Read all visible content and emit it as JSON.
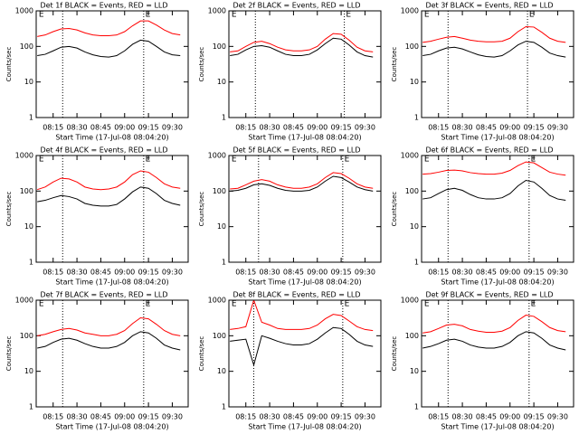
{
  "chart_data": [
    {
      "type": "line",
      "title": "Det 1f BLACK = Events, RED = LLD",
      "xlabel": "Start Time (17-Jul-08 08:04:20)",
      "ylabel": "Counts/sec",
      "ylog": true,
      "x": [
        485,
        490,
        495,
        500,
        505,
        510,
        515,
        520,
        525,
        530,
        535,
        540,
        545,
        550,
        555,
        560,
        565,
        570,
        575
      ],
      "series": [
        {
          "color": "#000000",
          "values": [
            55,
            60,
            75,
            95,
            100,
            90,
            70,
            58,
            52,
            50,
            55,
            75,
            115,
            150,
            140,
            100,
            70,
            58,
            55
          ]
        },
        {
          "color": "#ff0000",
          "values": [
            190,
            210,
            260,
            310,
            320,
            290,
            240,
            210,
            200,
            200,
            210,
            260,
            380,
            520,
            520,
            400,
            290,
            230,
            210
          ]
        }
      ],
      "xlim": [
        484.33,
        580
      ],
      "xticks": [
        {
          "value": 495,
          "label": "08:15"
        },
        {
          "value": 510,
          "label": "08:30"
        },
        {
          "value": 525,
          "label": "08:45"
        },
        {
          "value": 540,
          "label": "09:00"
        },
        {
          "value": 555,
          "label": "09:15"
        },
        {
          "value": 570,
          "label": "09:30"
        }
      ],
      "ylim": [
        1,
        1000
      ],
      "yticks": [
        1,
        10,
        100,
        1000
      ],
      "vlines": [
        501,
        552
      ],
      "markers": [
        {
          "x": 486,
          "label": "E"
        },
        {
          "x": 553,
          "label": "E"
        }
      ]
    },
    {
      "type": "line",
      "title": "Det 2f BLACK = Events, RED = LLD",
      "xlabel": "Start Time (17-Jul-08 08:04:20)",
      "ylabel": "Counts/sec",
      "ylog": true,
      "x": [
        485,
        490,
        495,
        500,
        505,
        510,
        515,
        520,
        525,
        530,
        535,
        540,
        545,
        550,
        555,
        560,
        565,
        570,
        575
      ],
      "series": [
        {
          "color": "#000000",
          "values": [
            55,
            60,
            80,
            100,
            105,
            95,
            75,
            60,
            55,
            55,
            60,
            80,
            120,
            170,
            160,
            110,
            70,
            55,
            50
          ]
        },
        {
          "color": "#ff0000",
          "values": [
            70,
            75,
            100,
            130,
            140,
            120,
            95,
            80,
            75,
            75,
            80,
            100,
            160,
            230,
            220,
            150,
            95,
            75,
            70
          ]
        }
      ],
      "xlim": [
        484.33,
        580
      ],
      "xticks": [
        {
          "value": 495,
          "label": "08:15"
        },
        {
          "value": 510,
          "label": "08:30"
        },
        {
          "value": 525,
          "label": "08:45"
        },
        {
          "value": 540,
          "label": "09:00"
        },
        {
          "value": 555,
          "label": "09:15"
        },
        {
          "value": 570,
          "label": "09:30"
        }
      ],
      "ylim": [
        1,
        1000
      ],
      "yticks": [
        1,
        10,
        100,
        1000
      ],
      "vlines": [
        501,
        557
      ],
      "markers": [
        {
          "x": 486,
          "label": "E"
        },
        {
          "x": 558,
          "label": "E"
        }
      ]
    },
    {
      "type": "line",
      "title": "Det 3f BLACK = Events, RED = LLD",
      "xlabel": "Start Time (17-Jul-08 08:04:20)",
      "ylabel": "Counts/sec",
      "ylog": true,
      "x": [
        485,
        490,
        495,
        500,
        505,
        510,
        515,
        520,
        525,
        530,
        535,
        540,
        545,
        550,
        555,
        560,
        565,
        570,
        575
      ],
      "series": [
        {
          "color": "#000000",
          "values": [
            55,
            60,
            75,
            90,
            95,
            85,
            70,
            58,
            52,
            50,
            55,
            75,
            110,
            140,
            130,
            95,
            65,
            55,
            50
          ]
        },
        {
          "color": "#ff0000",
          "values": [
            130,
            140,
            160,
            180,
            190,
            170,
            150,
            140,
            135,
            135,
            140,
            170,
            260,
            360,
            350,
            250,
            170,
            140,
            130
          ]
        }
      ],
      "xlim": [
        484.33,
        580
      ],
      "xticks": [
        {
          "value": 495,
          "label": "08:15"
        },
        {
          "value": 510,
          "label": "08:30"
        },
        {
          "value": 525,
          "label": "08:45"
        },
        {
          "value": 540,
          "label": "09:00"
        },
        {
          "value": 555,
          "label": "09:15"
        },
        {
          "value": 570,
          "label": "09:30"
        }
      ],
      "ylim": [
        1,
        1000
      ],
      "yticks": [
        1,
        10,
        100,
        1000
      ],
      "vlines": [
        501,
        551
      ],
      "markers": [
        {
          "x": 486,
          "label": "E"
        },
        {
          "x": 552,
          "label": "E"
        }
      ]
    },
    {
      "type": "line",
      "title": "Det 4f BLACK = Events, RED = LLD",
      "xlabel": "Start Time (17-Jul-08 08:04:20)",
      "ylabel": "Counts/sec",
      "ylog": true,
      "x": [
        485,
        490,
        495,
        500,
        505,
        510,
        515,
        520,
        525,
        530,
        535,
        540,
        545,
        550,
        555,
        560,
        565,
        570,
        575
      ],
      "series": [
        {
          "color": "#000000",
          "values": [
            50,
            55,
            65,
            75,
            70,
            60,
            45,
            40,
            38,
            38,
            42,
            60,
            95,
            130,
            120,
            85,
            55,
            45,
            40
          ]
        },
        {
          "color": "#ff0000",
          "values": [
            110,
            130,
            180,
            230,
            220,
            180,
            130,
            115,
            110,
            115,
            130,
            180,
            290,
            370,
            340,
            240,
            160,
            130,
            120
          ]
        }
      ],
      "xlim": [
        484.33,
        580
      ],
      "xticks": [
        {
          "value": 495,
          "label": "08:15"
        },
        {
          "value": 510,
          "label": "08:30"
        },
        {
          "value": 525,
          "label": "08:45"
        },
        {
          "value": 540,
          "label": "09:00"
        },
        {
          "value": 555,
          "label": "09:15"
        },
        {
          "value": 570,
          "label": "09:30"
        }
      ],
      "ylim": [
        1,
        1000
      ],
      "yticks": [
        1,
        10,
        100,
        1000
      ],
      "vlines": [
        501,
        552
      ],
      "markers": [
        {
          "x": 486,
          "label": "E"
        },
        {
          "x": 553,
          "label": "E"
        }
      ]
    },
    {
      "type": "line",
      "title": "Det 5f BLACK = Events, RED = LLD",
      "xlabel": "Start Time (17-Jul-08 08:04:20)",
      "ylabel": "Counts/sec",
      "ylog": true,
      "x": [
        485,
        490,
        495,
        500,
        505,
        510,
        515,
        520,
        525,
        530,
        535,
        540,
        545,
        550,
        555,
        560,
        565,
        570,
        575
      ],
      "series": [
        {
          "color": "#000000",
          "values": [
            100,
            105,
            120,
            150,
            160,
            145,
            120,
            105,
            100,
            100,
            105,
            130,
            190,
            260,
            240,
            180,
            130,
            110,
            100
          ]
        },
        {
          "color": "#ff0000",
          "values": [
            115,
            120,
            150,
            190,
            210,
            190,
            150,
            130,
            120,
            120,
            130,
            160,
            240,
            330,
            310,
            230,
            160,
            130,
            120
          ]
        }
      ],
      "xlim": [
        484.33,
        580
      ],
      "xticks": [
        {
          "value": 495,
          "label": "08:15"
        },
        {
          "value": 510,
          "label": "08:30"
        },
        {
          "value": 525,
          "label": "08:45"
        },
        {
          "value": 540,
          "label": "09:00"
        },
        {
          "value": 555,
          "label": "09:15"
        },
        {
          "value": 570,
          "label": "09:30"
        }
      ],
      "ylim": [
        1,
        1000
      ],
      "yticks": [
        1,
        10,
        100,
        1000
      ],
      "vlines": [
        503,
        556
      ],
      "markers": [
        {
          "x": 486,
          "label": "E"
        },
        {
          "x": 557,
          "label": "E"
        }
      ]
    },
    {
      "type": "line",
      "title": "Det 6f BLACK = Events, RED = LLD",
      "xlabel": "Start Time (17-Jul-08 08:04:20)",
      "ylabel": "Counts/sec",
      "ylog": true,
      "x": [
        485,
        490,
        495,
        500,
        505,
        510,
        515,
        520,
        525,
        530,
        535,
        540,
        545,
        550,
        555,
        560,
        565,
        570,
        575
      ],
      "series": [
        {
          "color": "#000000",
          "values": [
            60,
            65,
            85,
            110,
            120,
            105,
            80,
            65,
            60,
            60,
            65,
            85,
            140,
            200,
            180,
            120,
            75,
            60,
            55
          ]
        },
        {
          "color": "#ff0000",
          "values": [
            300,
            310,
            340,
            380,
            390,
            370,
            330,
            310,
            300,
            300,
            320,
            380,
            520,
            660,
            620,
            460,
            340,
            300,
            280
          ]
        }
      ],
      "xlim": [
        484.33,
        580
      ],
      "xticks": [
        {
          "value": 495,
          "label": "08:15"
        },
        {
          "value": 510,
          "label": "08:30"
        },
        {
          "value": 525,
          "label": "08:45"
        },
        {
          "value": 540,
          "label": "09:00"
        },
        {
          "value": 555,
          "label": "09:15"
        },
        {
          "value": 570,
          "label": "09:30"
        }
      ],
      "ylim": [
        1,
        1000
      ],
      "yticks": [
        1,
        10,
        100,
        1000
      ],
      "vlines": [
        501,
        552
      ],
      "markers": [
        {
          "x": 486,
          "label": "E"
        },
        {
          "x": 553,
          "label": "E"
        }
      ]
    },
    {
      "type": "line",
      "title": "Det 7f BLACK = Events, RED = LLD",
      "xlabel": "Start Time (17-Jul-08 08:04:20)",
      "ylabel": "Counts/sec",
      "ylog": true,
      "x": [
        485,
        490,
        495,
        500,
        505,
        510,
        515,
        520,
        525,
        530,
        535,
        540,
        545,
        550,
        555,
        560,
        565,
        570,
        575
      ],
      "series": [
        {
          "color": "#000000",
          "values": [
            45,
            50,
            65,
            80,
            85,
            75,
            60,
            50,
            45,
            45,
            50,
            65,
            100,
            130,
            120,
            85,
            55,
            45,
            40
          ]
        },
        {
          "color": "#ff0000",
          "values": [
            100,
            110,
            130,
            150,
            160,
            145,
            120,
            110,
            100,
            100,
            110,
            140,
            220,
            320,
            300,
            210,
            140,
            110,
            100
          ]
        }
      ],
      "xlim": [
        484.33,
        580
      ],
      "xticks": [
        {
          "value": 495,
          "label": "08:15"
        },
        {
          "value": 510,
          "label": "08:30"
        },
        {
          "value": 525,
          "label": "08:45"
        },
        {
          "value": 540,
          "label": "09:00"
        },
        {
          "value": 555,
          "label": "09:15"
        },
        {
          "value": 570,
          "label": "09:30"
        }
      ],
      "ylim": [
        1,
        1000
      ],
      "yticks": [
        1,
        10,
        100,
        1000
      ],
      "vlines": [
        501,
        552
      ],
      "markers": [
        {
          "x": 486,
          "label": "E"
        },
        {
          "x": 553,
          "label": "E"
        }
      ]
    },
    {
      "type": "line",
      "title": "Det 8f BLACK = Events, RED = LLD",
      "xlabel": "Start Time (17-Jul-08 08:04:20)",
      "ylabel": "Counts/sec",
      "ylog": true,
      "x": [
        485,
        490,
        495,
        500,
        505,
        510,
        515,
        520,
        525,
        530,
        535,
        540,
        545,
        550,
        555,
        560,
        565,
        570,
        575
      ],
      "series": [
        {
          "color": "#000000",
          "values": [
            70,
            75,
            80,
            15,
            100,
            85,
            70,
            60,
            55,
            55,
            60,
            80,
            120,
            170,
            160,
            110,
            70,
            55,
            50
          ]
        },
        {
          "color": "#ff0000",
          "values": [
            150,
            160,
            180,
            1000,
            240,
            200,
            160,
            150,
            150,
            150,
            160,
            200,
            300,
            400,
            370,
            260,
            180,
            150,
            140
          ]
        }
      ],
      "xlim": [
        484.33,
        580
      ],
      "xticks": [
        {
          "value": 495,
          "label": "08:15"
        },
        {
          "value": 510,
          "label": "08:30"
        },
        {
          "value": 525,
          "label": "08:45"
        },
        {
          "value": 540,
          "label": "09:00"
        },
        {
          "value": 555,
          "label": "09:15"
        },
        {
          "value": 570,
          "label": "09:30"
        }
      ],
      "ylim": [
        1,
        1000
      ],
      "yticks": [
        1,
        10,
        100,
        1000
      ],
      "vlines": [
        500,
        556
      ],
      "markers": [
        {
          "x": 486,
          "label": "E"
        },
        {
          "x": 557,
          "label": "E"
        }
      ]
    },
    {
      "type": "line",
      "title": "Det 9f BLACK = Events, RED = LLD",
      "xlabel": "Start Time (17-Jul-08 08:04:20)",
      "ylabel": "Counts/sec",
      "ylog": true,
      "x": [
        485,
        490,
        495,
        500,
        505,
        510,
        515,
        520,
        525,
        530,
        535,
        540,
        545,
        550,
        555,
        560,
        565,
        570,
        575
      ],
      "series": [
        {
          "color": "#000000",
          "values": [
            45,
            50,
            60,
            75,
            80,
            70,
            55,
            48,
            45,
            45,
            50,
            65,
            100,
            130,
            120,
            85,
            55,
            45,
            40
          ]
        },
        {
          "color": "#ff0000",
          "values": [
            120,
            130,
            160,
            200,
            210,
            190,
            150,
            135,
            125,
            125,
            135,
            170,
            270,
            380,
            350,
            250,
            170,
            140,
            130
          ]
        }
      ],
      "xlim": [
        484.33,
        580
      ],
      "xticks": [
        {
          "value": 495,
          "label": "08:15"
        },
        {
          "value": 510,
          "label": "08:30"
        },
        {
          "value": 525,
          "label": "08:45"
        },
        {
          "value": 540,
          "label": "09:00"
        },
        {
          "value": 555,
          "label": "09:15"
        },
        {
          "value": 570,
          "label": "09:30"
        }
      ],
      "ylim": [
        1,
        1000
      ],
      "yticks": [
        1,
        10,
        100,
        1000
      ],
      "vlines": [
        501,
        552
      ],
      "markers": [
        {
          "x": 486,
          "label": "E"
        },
        {
          "x": 553,
          "label": "E"
        }
      ]
    }
  ]
}
